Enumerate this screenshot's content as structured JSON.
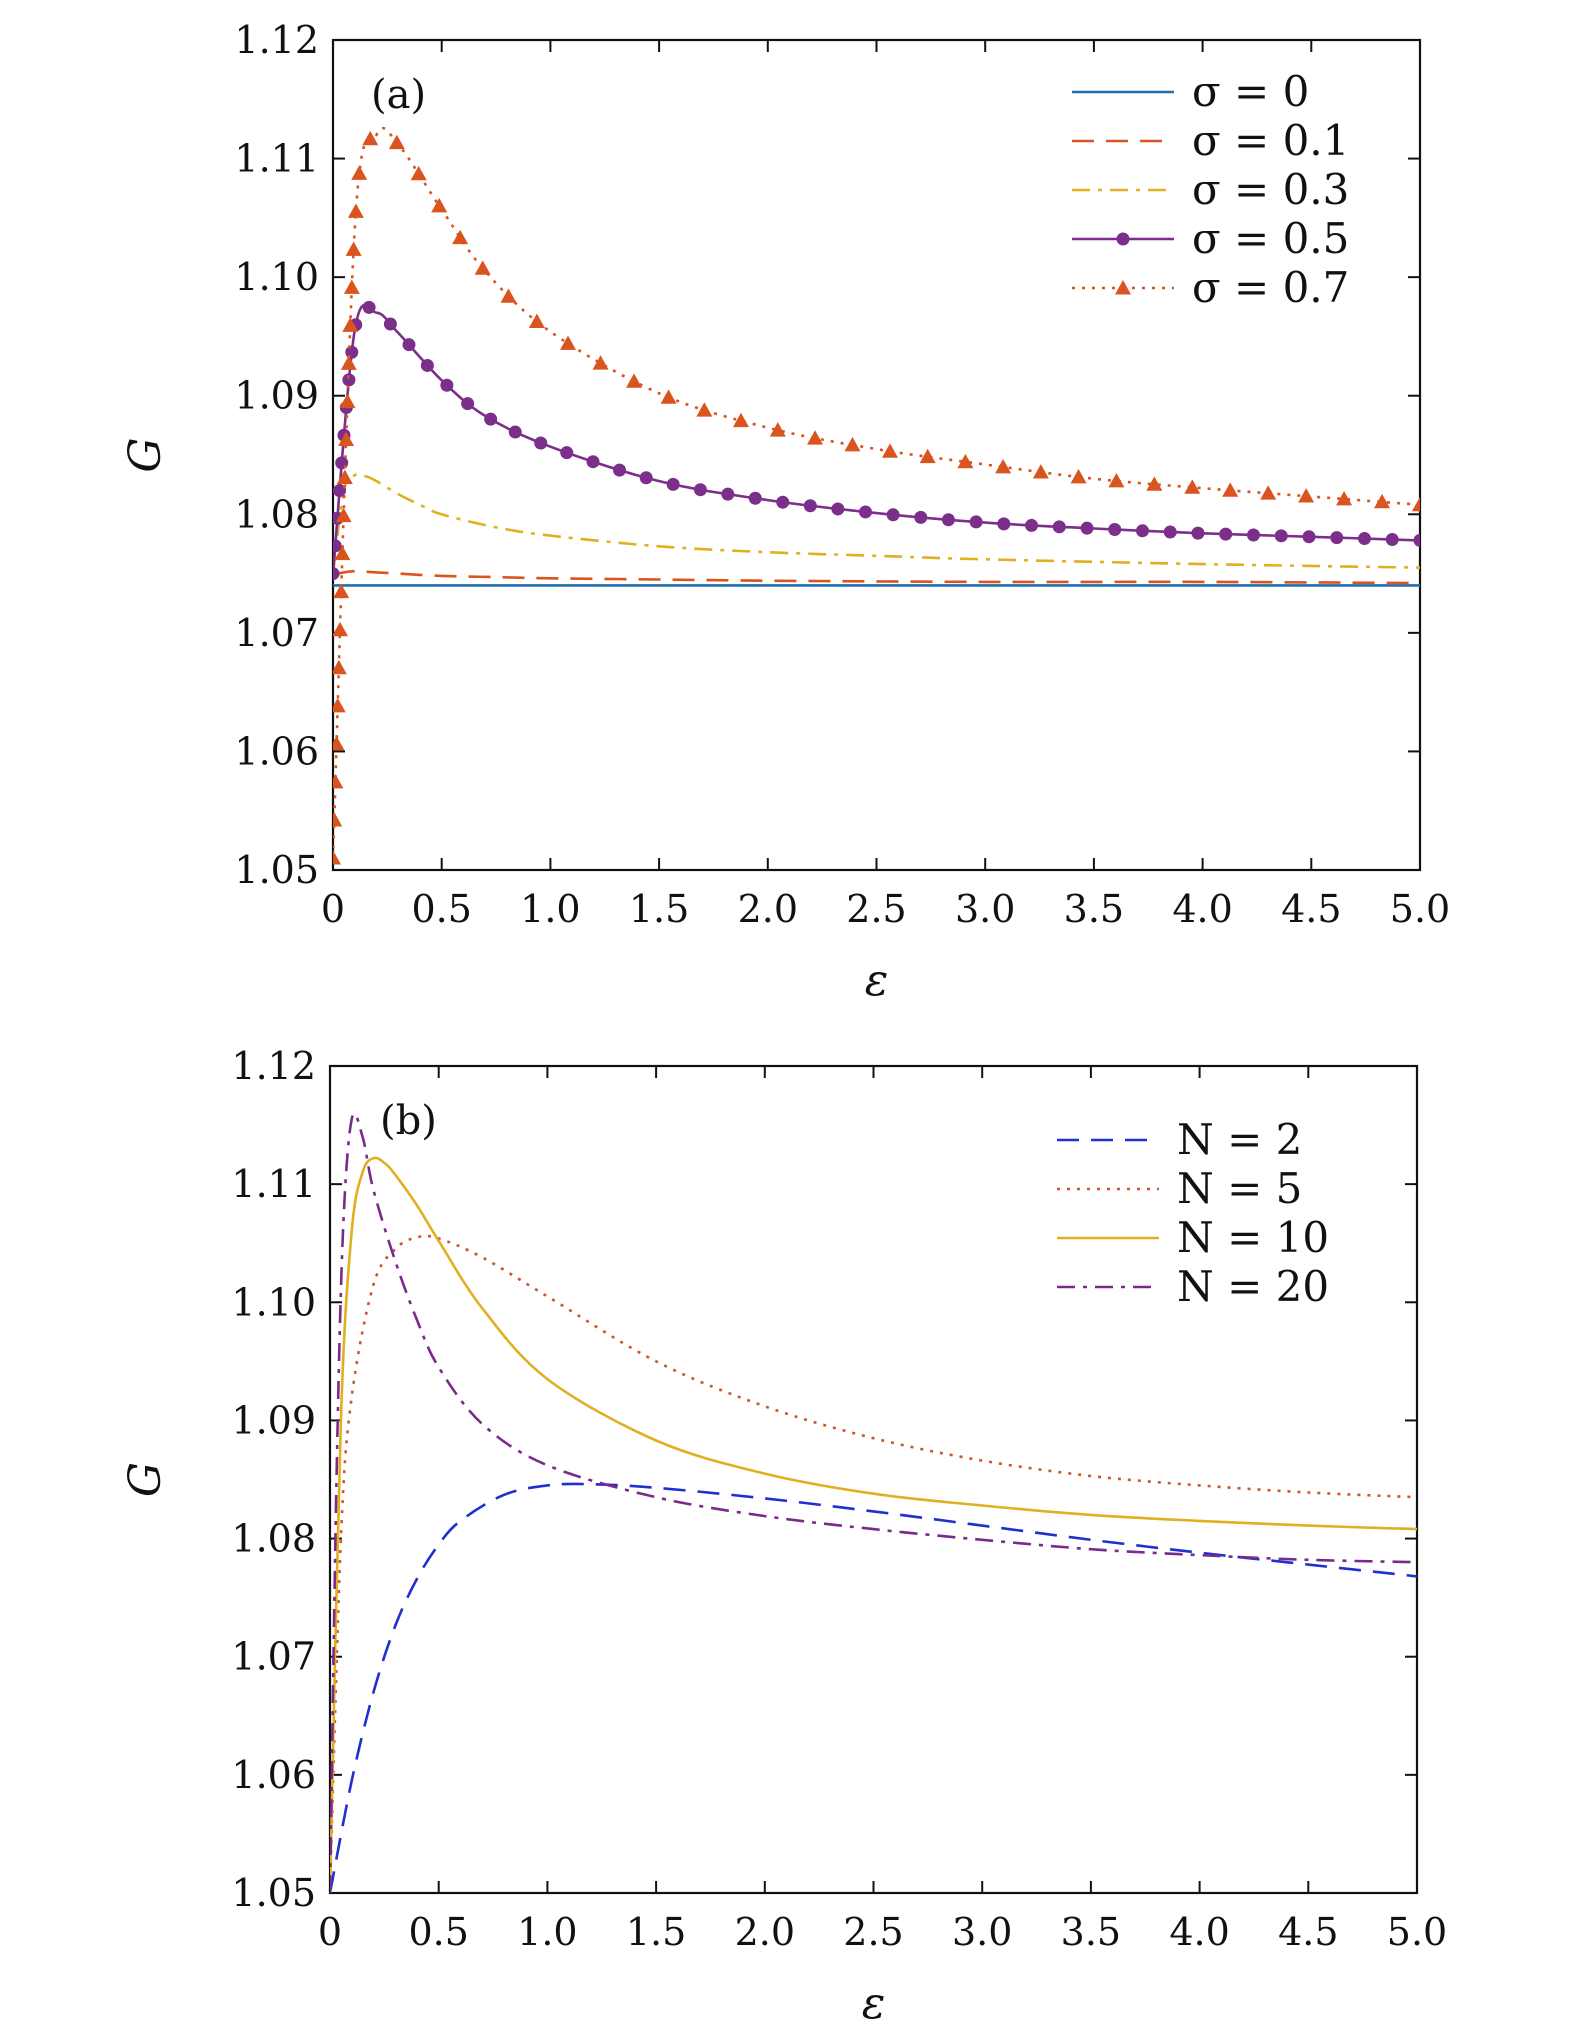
{
  "chart_data": [
    {
      "type": "line",
      "panel_label": "(a)",
      "xlabel": "ε",
      "ylabel": "G",
      "xlim": [
        0,
        5
      ],
      "ylim": [
        1.05,
        1.12
      ],
      "xticks": [
        "0",
        "0.5",
        "1.0",
        "1.5",
        "2.0",
        "2.5",
        "3.0",
        "3.5",
        "4.0",
        "4.5",
        "5.0"
      ],
      "yticks": [
        "1.05",
        "1.06",
        "1.07",
        "1.08",
        "1.09",
        "1.10",
        "1.11",
        "1.12"
      ],
      "legend_position": "top-right",
      "grid": false,
      "series": [
        {
          "name": "σ = 0",
          "color": "#1f6fb0",
          "dash": "solid",
          "marker": "none",
          "x": [
            0,
            5
          ],
          "y": [
            1.074,
            1.074
          ]
        },
        {
          "name": "σ = 0.1",
          "color": "#d9541e",
          "dash": "dashed",
          "marker": "none",
          "x": [
            0,
            0.05,
            0.1,
            0.2,
            0.3,
            0.5,
            0.75,
            1.0,
            1.5,
            2.0,
            3.0,
            4.0,
            5.0
          ],
          "y": [
            1.0749,
            1.0751,
            1.0752,
            1.0751,
            1.075,
            1.0748,
            1.0747,
            1.0746,
            1.0745,
            1.0744,
            1.0743,
            1.0743,
            1.0742
          ]
        },
        {
          "name": "σ = 0.3",
          "color": "#e0b020",
          "dash": "dashdot",
          "marker": "none",
          "x": [
            0,
            0.05,
            0.1,
            0.15,
            0.2,
            0.3,
            0.4,
            0.5,
            0.75,
            1.0,
            1.5,
            2.0,
            2.5,
            3.0,
            4.0,
            5.0
          ],
          "y": [
            1.075,
            1.082,
            1.0833,
            1.0832,
            1.0828,
            1.0817,
            1.0808,
            1.08,
            1.0789,
            1.0782,
            1.0773,
            1.0768,
            1.0765,
            1.0762,
            1.0758,
            1.0755
          ]
        },
        {
          "name": "σ = 0.5",
          "color": "#7b2e8a",
          "dash": "solid",
          "marker": "circle",
          "x": [
            0,
            0.1,
            0.2,
            0.3,
            0.5,
            0.7,
            1.0,
            1.5,
            2.0,
            2.5,
            3.0,
            3.5,
            4.0,
            4.5,
            5.0
          ],
          "y": [
            1.075,
            1.0955,
            1.097,
            1.0953,
            1.0913,
            1.0883,
            1.0857,
            1.0828,
            1.0812,
            1.0801,
            1.0793,
            1.0788,
            1.0784,
            1.0781,
            1.0778
          ]
        },
        {
          "name": "σ = 0.7",
          "color": "#d9541e",
          "dash": "dotted",
          "marker": "triangle",
          "x": [
            0,
            0.1,
            0.2,
            0.3,
            0.5,
            0.7,
            1.0,
            1.5,
            2.0,
            2.5,
            3.0,
            3.5,
            4.0,
            4.5,
            5.0
          ],
          "y": [
            1.051,
            1.104,
            1.112,
            1.1112,
            1.1057,
            1.1005,
            1.0954,
            1.0902,
            1.0873,
            1.0855,
            1.0842,
            1.083,
            1.0822,
            1.0815,
            1.0808
          ]
        }
      ]
    },
    {
      "type": "line",
      "panel_label": "(b)",
      "xlabel": "ε",
      "ylabel": "G",
      "xlim": [
        0,
        5
      ],
      "ylim": [
        1.05,
        1.12
      ],
      "xticks": [
        "0",
        "0.5",
        "1.0",
        "1.5",
        "2.0",
        "2.5",
        "3.0",
        "3.5",
        "4.0",
        "4.5",
        "5.0"
      ],
      "yticks": [
        "1.05",
        "1.06",
        "1.07",
        "1.08",
        "1.09",
        "1.10",
        "1.11",
        "1.12"
      ],
      "legend_position": "top-right",
      "grid": false,
      "series": [
        {
          "name": "N = 2",
          "color": "#1f2fd0",
          "dash": "dashed",
          "x": [
            0,
            0.1,
            0.2,
            0.3,
            0.4,
            0.5,
            0.6,
            0.8,
            1.0,
            1.2,
            1.5,
            2.0,
            2.5,
            3.0,
            3.5,
            4.0,
            4.5,
            5.0
          ],
          "y": [
            1.05,
            1.0595,
            1.067,
            1.0726,
            1.0766,
            1.0795,
            1.0815,
            1.0837,
            1.0845,
            1.0846,
            1.0843,
            1.0834,
            1.0823,
            1.0811,
            1.0799,
            1.0788,
            1.0778,
            1.0768
          ]
        },
        {
          "name": "N = 5",
          "color": "#c65a2a",
          "dash": "dotted",
          "x": [
            0,
            0.05,
            0.1,
            0.2,
            0.3,
            0.4,
            0.5,
            0.7,
            1.0,
            1.5,
            2.0,
            2.5,
            3.0,
            3.5,
            4.0,
            4.5,
            5.0
          ],
          "y": [
            1.05,
            1.08,
            1.092,
            1.1015,
            1.1045,
            1.1055,
            1.1054,
            1.1038,
            1.1005,
            1.095,
            1.0912,
            1.0885,
            1.0866,
            1.0853,
            1.0845,
            1.0839,
            1.0835
          ]
        },
        {
          "name": "N = 10",
          "color": "#e0b020",
          "dash": "solid",
          "x": [
            0,
            0.05,
            0.1,
            0.15,
            0.2,
            0.25,
            0.3,
            0.4,
            0.5,
            0.7,
            1.0,
            1.5,
            2.0,
            2.5,
            3.0,
            3.5,
            4.0,
            4.5,
            5.0
          ],
          "y": [
            1.05,
            1.09,
            1.106,
            1.111,
            1.1122,
            1.1118,
            1.1108,
            1.1082,
            1.1052,
            1.0995,
            1.0935,
            1.0883,
            1.0855,
            1.0838,
            1.0828,
            1.082,
            1.0815,
            1.0811,
            1.0808
          ]
        },
        {
          "name": "N = 20",
          "color": "#7a2a8a",
          "dash": "dashdot",
          "x": [
            0,
            0.03,
            0.06,
            0.1,
            0.15,
            0.2,
            0.3,
            0.4,
            0.5,
            0.7,
            1.0,
            1.5,
            2.0,
            2.5,
            3.0,
            3.5,
            4.0,
            4.5,
            5.0
          ],
          "y": [
            1.05,
            1.085,
            1.106,
            1.1155,
            1.114,
            1.1095,
            1.1035,
            1.0985,
            1.0945,
            1.0897,
            1.0862,
            1.0835,
            1.0819,
            1.0808,
            1.0799,
            1.0791,
            1.0786,
            1.0782,
            1.078
          ]
        }
      ]
    }
  ]
}
